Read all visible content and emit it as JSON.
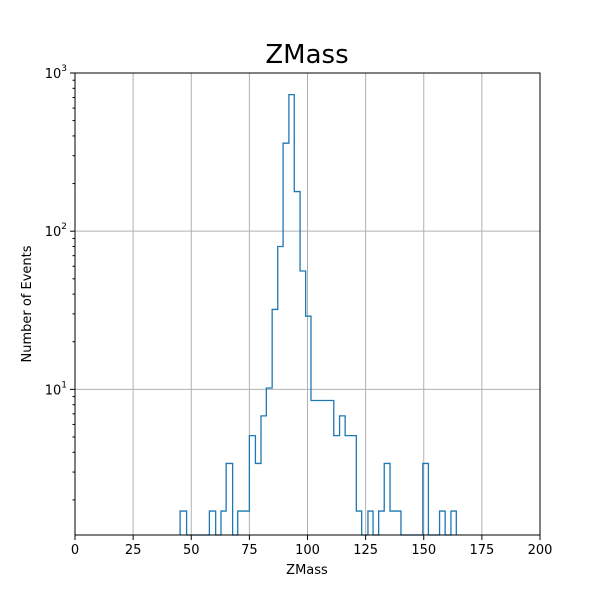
{
  "chart_data": {
    "type": "histogram",
    "title": "ZMass",
    "xlabel": "ZMass",
    "ylabel": "Number of Events",
    "xlim": [
      0,
      200
    ],
    "ylim": [
      1.2,
      1000
    ],
    "yscale": "log",
    "grid": true,
    "x_ticks": [
      0,
      25,
      50,
      75,
      100,
      125,
      150,
      175,
      200
    ],
    "x_tick_labels": [
      "0",
      "25",
      "50",
      "75",
      "100",
      "125",
      "150",
      "175",
      "200"
    ],
    "y_ticks": [
      {
        "value": 10,
        "base": "10",
        "exp": "1"
      },
      {
        "value": 100,
        "base": "10",
        "exp": "2"
      },
      {
        "value": 1000,
        "base": "10",
        "exp": "3"
      }
    ],
    "series_color": "#1f77b4",
    "bin_edges": [
      45.2,
      48,
      50,
      57.8,
      60.5,
      62.8,
      65,
      67.8,
      70,
      72.7,
      75,
      77.6,
      80,
      82.3,
      84.8,
      87.2,
      89.5,
      92,
      94.3,
      96.8,
      99.2,
      101.5,
      106.5,
      111.3,
      113.8,
      116.2,
      118.5,
      121,
      123.3,
      126,
      128.2,
      130.6,
      133,
      135.5,
      137.8,
      140.2,
      142.5,
      147.2,
      149.6,
      152,
      154.5,
      156.8,
      159.2,
      161.7,
      164
    ],
    "counts": [
      1.7,
      0,
      0,
      1.7,
      0,
      1.7,
      3.4,
      0,
      1.7,
      1.7,
      5.1,
      3.4,
      6.8,
      10.2,
      32,
      80,
      360,
      730,
      178,
      56,
      29,
      8.5,
      8.5,
      5.1,
      6.8,
      5.1,
      5.1,
      1.7,
      0,
      1.7,
      0,
      1.7,
      3.4,
      1.7,
      1.7,
      0,
      0,
      0,
      3.4,
      0,
      0,
      1.7,
      0,
      1.7
    ]
  }
}
